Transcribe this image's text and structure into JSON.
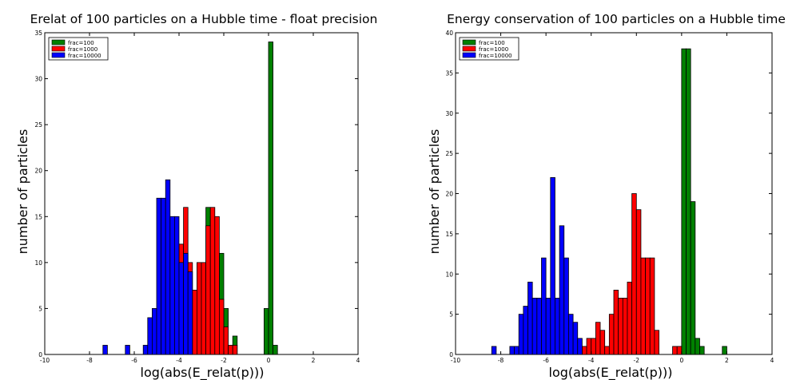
{
  "chart_data": [
    {
      "type": "bar",
      "title": "Erelat of 100 particles on a Hubble time - float precision",
      "xlabel": "log(abs(E_relat(p)))",
      "ylabel": "number of particles",
      "xlim": [
        -10,
        4
      ],
      "ylim": [
        0,
        35
      ],
      "xticks": [
        -10,
        -8,
        -6,
        -4,
        -2,
        0,
        2,
        4
      ],
      "yticks": [
        0,
        5,
        10,
        15,
        20,
        25,
        30,
        35
      ],
      "grid": false,
      "legend_position": "top-left",
      "bin_width": 0.2,
      "series": [
        {
          "name": "frac=100",
          "color": "#008000",
          "edges": [
            -2.8,
            -2.6,
            -2.4,
            -2.2,
            -2.0,
            -1.8,
            -1.6,
            -1.4,
            -1.2,
            -1.0,
            -0.8,
            -0.6,
            -0.4,
            -0.2,
            0.0,
            0.2
          ],
          "values": [
            16,
            15,
            7,
            11,
            5,
            0,
            2,
            0,
            0,
            0,
            0,
            0,
            0,
            5,
            34,
            1
          ]
        },
        {
          "name": "frac=1000",
          "color": "#ff0000",
          "edges": [
            -4.0,
            -3.8,
            -3.6,
            -3.4,
            -3.2,
            -3.0,
            -2.8,
            -2.6,
            -2.4,
            -2.2,
            -2.0,
            -1.8,
            -1.6
          ],
          "values": [
            12,
            16,
            10,
            7,
            10,
            10,
            14,
            16,
            15,
            6,
            3,
            1,
            1
          ]
        },
        {
          "name": "frac=10000",
          "color": "#0000ff",
          "edges": [
            -7.4,
            -7.2,
            -7.0,
            -6.8,
            -6.6,
            -6.4,
            -6.2,
            -6.0,
            -5.8,
            -5.6,
            -5.4,
            -5.2,
            -5.0,
            -4.8,
            -4.6,
            -4.4,
            -4.2,
            -4.0,
            -3.8,
            -3.6
          ],
          "values": [
            1,
            0,
            0,
            0,
            0,
            1,
            0,
            0,
            0,
            1,
            4,
            5,
            17,
            17,
            19,
            15,
            15,
            10,
            11,
            9
          ]
        }
      ]
    },
    {
      "type": "bar",
      "title": "Energy conservation of 100 particles on a Hubble time",
      "xlabel": "log(abs(E_relat(p)))",
      "ylabel": "number of particles",
      "xlim": [
        -10,
        4
      ],
      "ylim": [
        0,
        40
      ],
      "xticks": [
        -10,
        -8,
        -6,
        -4,
        -2,
        0,
        2,
        4
      ],
      "yticks": [
        0,
        5,
        10,
        15,
        20,
        25,
        30,
        35,
        40
      ],
      "grid": false,
      "legend_position": "top-left",
      "bin_width": 0.2,
      "series": [
        {
          "name": "frac=100",
          "color": "#008000",
          "edges": [
            -0.2,
            0.0,
            0.2,
            0.4,
            0.6,
            0.8,
            1.0,
            1.2,
            1.4,
            1.6,
            1.8
          ],
          "values": [
            1,
            38,
            38,
            19,
            2,
            1,
            0,
            0,
            0,
            0,
            1
          ]
        },
        {
          "name": "frac=1000",
          "color": "#ff0000",
          "edges": [
            -4.4,
            -4.2,
            -4.0,
            -3.8,
            -3.6,
            -3.4,
            -3.2,
            -3.0,
            -2.8,
            -2.6,
            -2.4,
            -2.2,
            -2.0,
            -1.8,
            -1.6,
            -1.4,
            -1.2,
            -1.0,
            -0.8,
            -0.6,
            -0.4,
            -0.2
          ],
          "values": [
            1,
            2,
            2,
            4,
            3,
            1,
            5,
            8,
            7,
            7,
            9,
            20,
            18,
            12,
            12,
            12,
            3,
            0,
            0,
            0,
            1,
            1
          ]
        },
        {
          "name": "frac=10000",
          "color": "#0000ff",
          "edges": [
            -8.4,
            -8.2,
            -8.0,
            -7.8,
            -7.6,
            -7.4,
            -7.2,
            -7.0,
            -6.8,
            -6.6,
            -6.4,
            -6.2,
            -6.0,
            -5.8,
            -5.6,
            -5.4,
            -5.2,
            -5.0,
            -4.8,
            -4.6
          ],
          "values": [
            1,
            0,
            0,
            0,
            1,
            1,
            5,
            6,
            9,
            7,
            7,
            12,
            7,
            22,
            7,
            16,
            12,
            5,
            4,
            2
          ]
        }
      ]
    }
  ]
}
